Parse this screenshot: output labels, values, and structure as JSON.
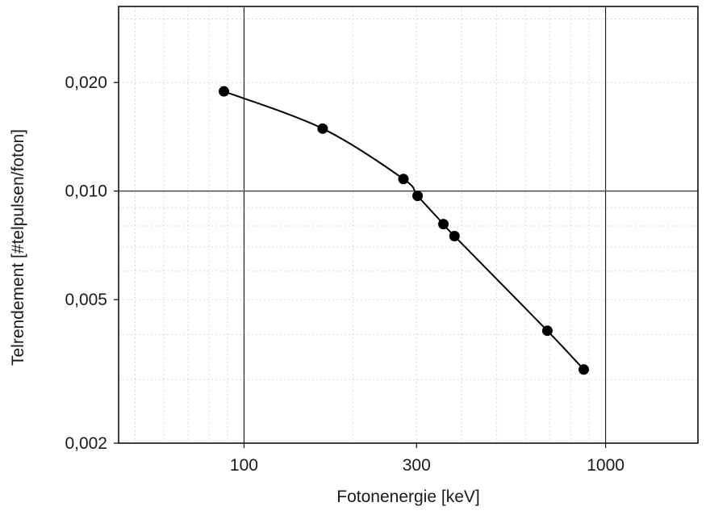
{
  "chart_data": {
    "type": "line",
    "title": "",
    "xlabel": "Fotonenergie [keV]",
    "ylabel": "Telrendement [#telpulsen/foton]",
    "x_scale": "log",
    "y_scale": "log",
    "xlim": [
      45,
      1800
    ],
    "ylim": [
      0.002,
      0.0325
    ],
    "x_ticks": [
      {
        "value": 100,
        "label": "100"
      },
      {
        "value": 300,
        "label": "300"
      },
      {
        "value": 1000,
        "label": "1000"
      }
    ],
    "y_ticks": [
      {
        "value": 0.002,
        "label": "0,002"
      },
      {
        "value": 0.005,
        "label": "0,005"
      },
      {
        "value": 0.01,
        "label": "0,010"
      },
      {
        "value": 0.02,
        "label": "0,020"
      }
    ],
    "major_grid": true,
    "minor_grid": true,
    "legend": "none",
    "line_color": "#000000",
    "marker_color": "#000000",
    "series": [
      {
        "x": [
          88,
          165,
          276,
          302,
          356,
          382,
          690,
          870
        ],
        "y": [
          0.0189,
          0.0149,
          0.0108,
          0.0097,
          0.0081,
          0.0075,
          0.0041,
          0.0032
        ]
      }
    ]
  }
}
